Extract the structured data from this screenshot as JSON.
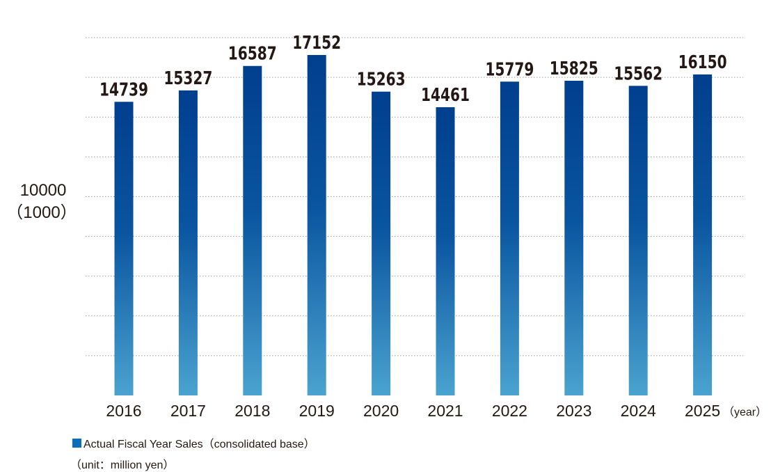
{
  "chart_data": {
    "type": "bar",
    "categories": [
      "2016",
      "2017",
      "2018",
      "2019",
      "2020",
      "2021",
      "2022",
      "2023",
      "2024",
      "2025"
    ],
    "values": [
      14739,
      15327,
      16587,
      17152,
      15263,
      14461,
      15779,
      15825,
      15562,
      16150
    ],
    "data_labels": [
      "14739",
      "15327",
      "16587",
      "17152",
      "15263",
      "14461",
      "15779",
      "15825",
      "15562",
      "16150"
    ],
    "series_name": "Actual Fiscal Year Sales（consolidated base）",
    "ylabel_top": "10000",
    "ylabel_bottom": "（1000）",
    "x_unit": "（year）",
    "unit_note": "（unit：million yen）",
    "ylim": [
      0,
      18000
    ],
    "grid": true,
    "grid_count": 9,
    "colors": {
      "bar_top": "#003f8e",
      "bar_mid": "#0a55a0",
      "bar_bottom": "#4aa3cf",
      "legend": "#0a6fb8",
      "grid": "#9a9a9a",
      "text": "#231815"
    }
  }
}
